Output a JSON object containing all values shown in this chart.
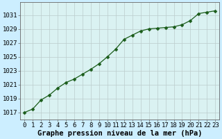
{
  "x": [
    0,
    1,
    2,
    3,
    4,
    5,
    6,
    7,
    8,
    9,
    10,
    11,
    12,
    13,
    14,
    15,
    16,
    17,
    18,
    19,
    20,
    21,
    22,
    23
  ],
  "y": [
    1017.0,
    1017.5,
    1018.8,
    1019.5,
    1020.5,
    1021.3,
    1021.8,
    1022.5,
    1023.2,
    1024.0,
    1025.0,
    1026.1,
    1027.5,
    1028.1,
    1028.7,
    1029.0,
    1029.1,
    1029.2,
    1029.3,
    1029.6,
    1030.2,
    1031.2,
    1031.4,
    1031.6
  ],
  "line_color": "#1a5c1a",
  "marker": "D",
  "marker_size": 2.5,
  "bg_color": "#cceeff",
  "plot_bg_color": "#daf2f2",
  "grid_color": "#bbcccc",
  "xlabel": "Graphe pression niveau de la mer (hPa)",
  "xlabel_fontsize": 7.5,
  "ylabel_ticks": [
    1017,
    1019,
    1021,
    1023,
    1025,
    1027,
    1029,
    1031
  ],
  "xlim": [
    -0.5,
    23.5
  ],
  "ylim": [
    1016.0,
    1032.8
  ],
  "tick_fontsize": 6.5,
  "xlabel_bold": true
}
